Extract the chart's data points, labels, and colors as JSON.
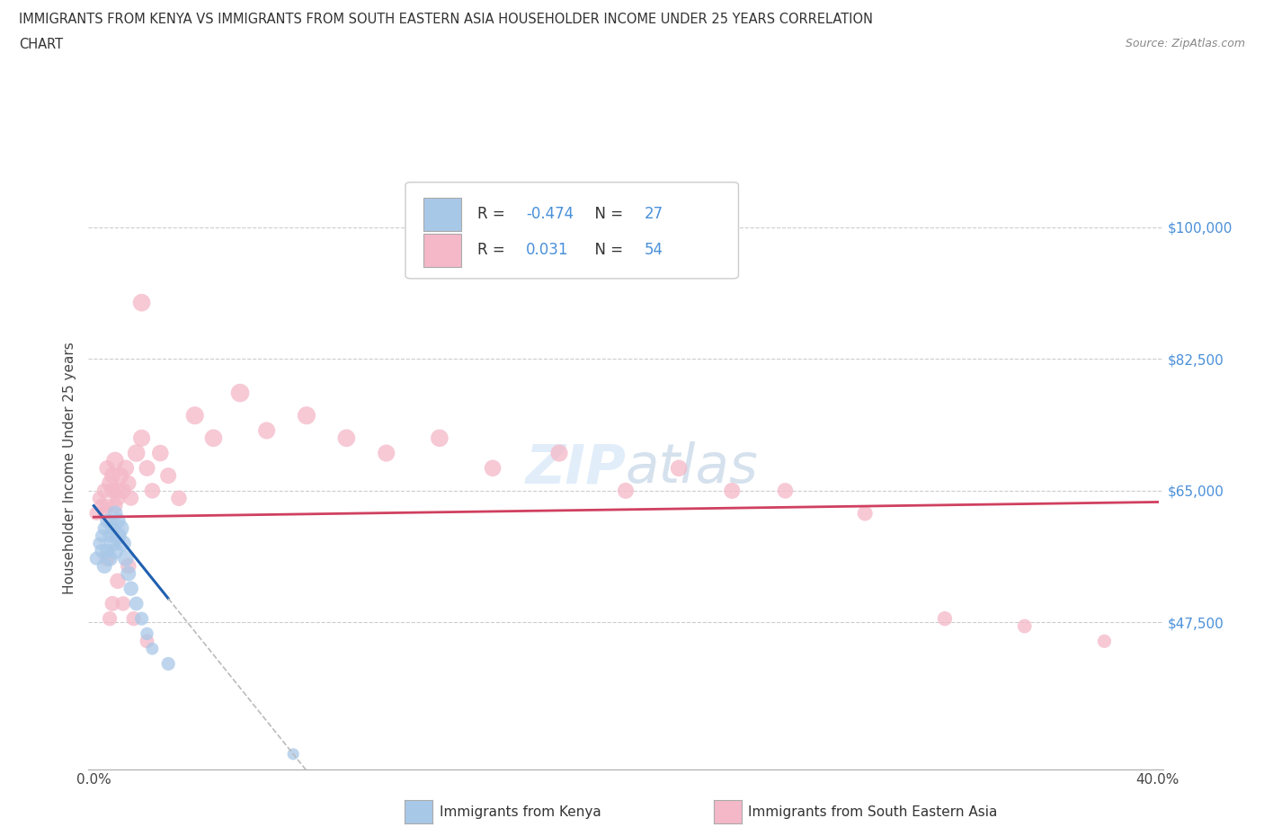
{
  "title_line1": "IMMIGRANTS FROM KENYA VS IMMIGRANTS FROM SOUTH EASTERN ASIA HOUSEHOLDER INCOME UNDER 25 YEARS CORRELATION",
  "title_line2": "CHART",
  "source": "Source: ZipAtlas.com",
  "ylabel": "Householder Income Under 25 years",
  "xlim": [
    -0.002,
    0.402
  ],
  "ylim": [
    28000,
    108000
  ],
  "yticks": [
    47500,
    65000,
    82500,
    100000
  ],
  "ytick_labels": [
    "$47,500",
    "$65,000",
    "$82,500",
    "$100,000"
  ],
  "xticks": [
    0.0,
    0.05,
    0.1,
    0.15,
    0.2,
    0.25,
    0.3,
    0.35,
    0.4
  ],
  "xtick_labels": [
    "0.0%",
    "",
    "",
    "",
    "",
    "",
    "",
    "",
    "40.0%"
  ],
  "legend_r_kenya": "-0.474",
  "legend_n_kenya": "27",
  "legend_r_sea": "0.031",
  "legend_n_sea": "54",
  "color_kenya": "#a8c8e8",
  "color_sea": "#f4b8c8",
  "trendline_kenya_color": "#2060b0",
  "trendline_sea_color": "#d04060",
  "trendline_extension_color": "#bbbbbb",
  "watermark": "ZIPatlas",
  "legend_label_kenya": "Immigrants from Kenya",
  "legend_label_sea": "Immigrants from South Eastern Asia",
  "kenya_x": [
    0.001,
    0.002,
    0.003,
    0.003,
    0.004,
    0.004,
    0.005,
    0.005,
    0.006,
    0.006,
    0.007,
    0.007,
    0.008,
    0.008,
    0.009,
    0.009,
    0.01,
    0.011,
    0.012,
    0.013,
    0.014,
    0.016,
    0.018,
    0.02,
    0.022,
    0.028,
    0.075
  ],
  "kenya_y": [
    56000,
    58000,
    57000,
    59000,
    55000,
    60000,
    57000,
    61000,
    56000,
    59000,
    58000,
    60000,
    57000,
    62000,
    59000,
    61000,
    60000,
    58000,
    56000,
    54000,
    52000,
    50000,
    48000,
    46000,
    44000,
    42000,
    30000
  ],
  "kenya_sizes": [
    120,
    100,
    130,
    110,
    150,
    120,
    140,
    130,
    160,
    120,
    180,
    140,
    170,
    150,
    200,
    160,
    190,
    170,
    160,
    150,
    140,
    130,
    120,
    110,
    100,
    120,
    90
  ],
  "sea_x": [
    0.001,
    0.002,
    0.003,
    0.004,
    0.004,
    0.005,
    0.005,
    0.006,
    0.006,
    0.007,
    0.007,
    0.008,
    0.008,
    0.009,
    0.009,
    0.01,
    0.011,
    0.012,
    0.013,
    0.014,
    0.016,
    0.018,
    0.02,
    0.022,
    0.025,
    0.028,
    0.032,
    0.038,
    0.045,
    0.055,
    0.065,
    0.08,
    0.095,
    0.11,
    0.13,
    0.15,
    0.175,
    0.2,
    0.22,
    0.24,
    0.26,
    0.29,
    0.32,
    0.35,
    0.38,
    0.005,
    0.006,
    0.007,
    0.009,
    0.011,
    0.013,
    0.015,
    0.02,
    0.018
  ],
  "sea_y": [
    62000,
    64000,
    63000,
    65000,
    62000,
    68000,
    63000,
    66000,
    61000,
    65000,
    67000,
    63000,
    69000,
    65000,
    64000,
    67000,
    65000,
    68000,
    66000,
    64000,
    70000,
    72000,
    68000,
    65000,
    70000,
    67000,
    64000,
    75000,
    72000,
    78000,
    73000,
    75000,
    72000,
    70000,
    72000,
    68000,
    70000,
    65000,
    68000,
    65000,
    65000,
    62000,
    48000,
    47000,
    45000,
    56000,
    48000,
    50000,
    53000,
    50000,
    55000,
    48000,
    45000,
    90000
  ],
  "sea_sizes": [
    130,
    120,
    140,
    150,
    130,
    160,
    140,
    170,
    130,
    160,
    180,
    150,
    200,
    170,
    160,
    190,
    170,
    180,
    160,
    150,
    200,
    190,
    170,
    160,
    180,
    170,
    160,
    210,
    200,
    220,
    190,
    210,
    200,
    190,
    200,
    180,
    190,
    170,
    180,
    170,
    160,
    150,
    140,
    130,
    120,
    160,
    140,
    150,
    160,
    140,
    160,
    140,
    130,
    200
  ]
}
